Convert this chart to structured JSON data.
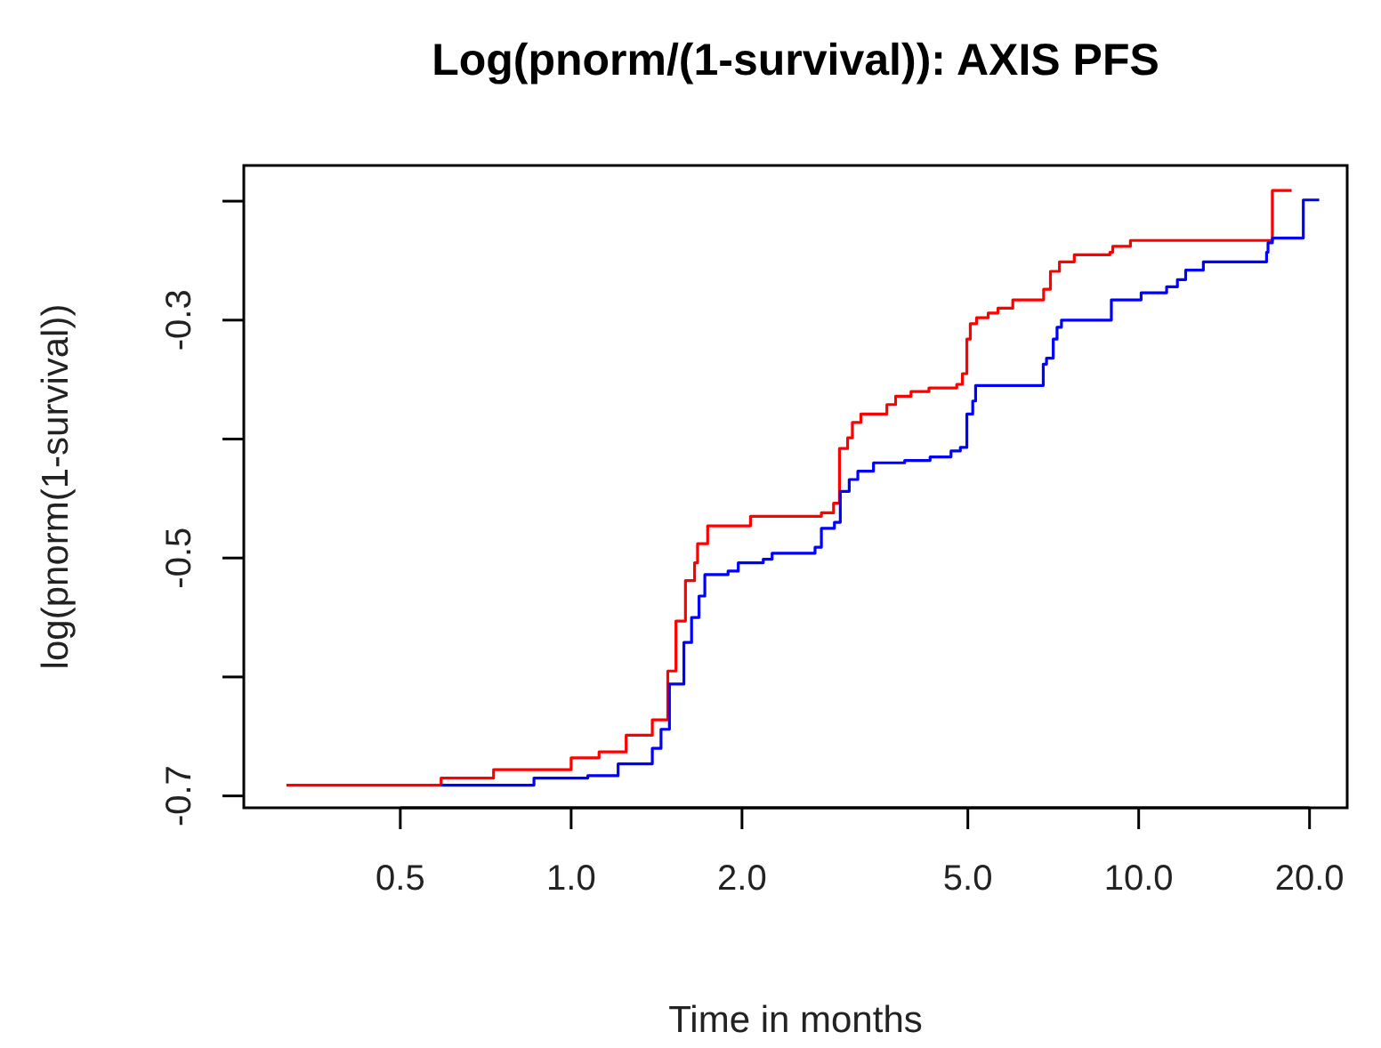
{
  "chart_data": {
    "type": "step",
    "title": "Log(pnorm/(1-survival)): AXIS PFS",
    "xlabel": "Time in months",
    "ylabel": "log(pnorm(1-survival))",
    "log": "x",
    "xlim": [
      0.265,
      23.3
    ],
    "ylim": [
      -0.71,
      -0.17
    ],
    "xticks": [
      {
        "value": 0.5,
        "label": "0.5"
      },
      {
        "value": 1,
        "label": "1.0"
      },
      {
        "value": 2,
        "label": "2.0"
      },
      {
        "value": 5,
        "label": "5.0"
      },
      {
        "value": 10,
        "label": "10.0"
      },
      {
        "value": 20,
        "label": "20.0"
      }
    ],
    "yticks": [
      {
        "value": -0.7,
        "label": "-0.7"
      },
      {
        "value": -0.6,
        "label": null
      },
      {
        "value": -0.5,
        "label": "-0.5"
      },
      {
        "value": -0.4,
        "label": null
      },
      {
        "value": -0.3,
        "label": "-0.3"
      },
      {
        "value": -0.2,
        "label": null
      }
    ],
    "series": [
      {
        "color": "#ff0000",
        "x": [
          0.315,
          0.59,
          0.73,
          1.0,
          1.12,
          1.25,
          1.39,
          1.48,
          1.53,
          1.59,
          1.65,
          1.67,
          1.74,
          2.07,
          2.76,
          2.9,
          2.97,
          3.07,
          3.13,
          3.24,
          3.6,
          3.73,
          3.97,
          4.27,
          4.78,
          4.89,
          4.98,
          5.05,
          5.18,
          5.43,
          5.65,
          6.0,
          6.8,
          6.99,
          7.25,
          7.7,
          8.9,
          9.0,
          9.67,
          17.2,
          18.6
        ],
        "values": [
          -0.691,
          -0.685,
          -0.678,
          -0.668,
          -0.663,
          -0.649,
          -0.636,
          -0.595,
          -0.553,
          -0.519,
          -0.504,
          -0.488,
          -0.473,
          -0.465,
          -0.462,
          -0.454,
          -0.408,
          -0.399,
          -0.386,
          -0.379,
          -0.371,
          -0.364,
          -0.36,
          -0.357,
          -0.354,
          -0.345,
          -0.316,
          -0.303,
          -0.298,
          -0.294,
          -0.29,
          -0.283,
          -0.274,
          -0.259,
          -0.251,
          -0.245,
          -0.243,
          -0.238,
          -0.233,
          -0.191,
          -0.191
        ]
      },
      {
        "color": "#0000ff",
        "x": [
          0.59,
          0.86,
          1.07,
          1.21,
          1.39,
          1.44,
          1.49,
          1.58,
          1.63,
          1.68,
          1.72,
          1.89,
          1.97,
          2.18,
          2.26,
          2.69,
          2.76,
          2.91,
          2.98,
          3.09,
          3.2,
          3.41,
          3.87,
          4.29,
          4.67,
          4.85,
          4.98,
          5.1,
          5.16,
          6.79,
          6.88,
          7.07,
          7.18,
          7.31,
          8.95,
          10.1,
          11.2,
          11.7,
          12.1,
          13.0,
          16.8,
          16.9,
          17.2,
          19.5,
          20.8
        ],
        "values": [
          -0.691,
          -0.685,
          -0.683,
          -0.673,
          -0.66,
          -0.644,
          -0.606,
          -0.571,
          -0.55,
          -0.532,
          -0.514,
          -0.511,
          -0.504,
          -0.501,
          -0.496,
          -0.491,
          -0.475,
          -0.47,
          -0.444,
          -0.434,
          -0.427,
          -0.42,
          -0.418,
          -0.415,
          -0.41,
          -0.407,
          -0.379,
          -0.368,
          -0.355,
          -0.337,
          -0.332,
          -0.316,
          -0.306,
          -0.3,
          -0.283,
          -0.277,
          -0.272,
          -0.266,
          -0.258,
          -0.251,
          -0.243,
          -0.235,
          -0.231,
          -0.199,
          -0.199
        ]
      }
    ]
  }
}
